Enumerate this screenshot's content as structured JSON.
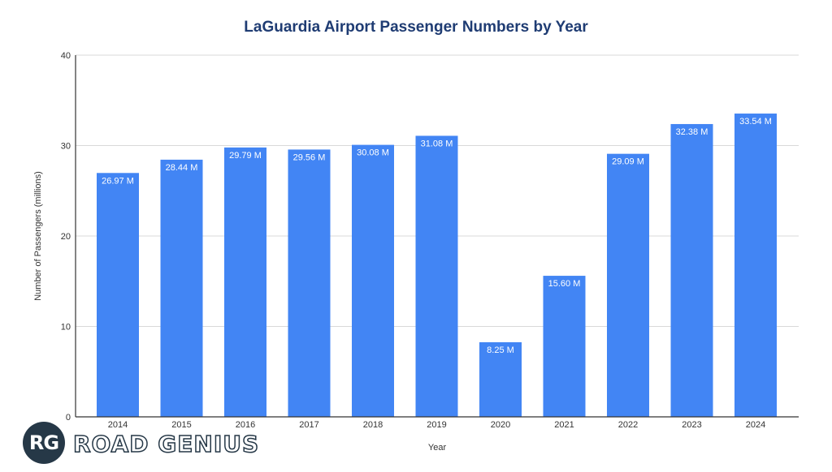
{
  "chart_data": {
    "type": "bar",
    "title": "LaGuardia Airport Passenger Numbers by Year",
    "xlabel": "Year",
    "ylabel": "Number of Passengers (millions)",
    "ylim": [
      0,
      40
    ],
    "yticks": [
      "0",
      "10",
      "20",
      "30",
      "40"
    ],
    "grid": true,
    "categories": [
      "2014",
      "2015",
      "2016",
      "2017",
      "2018",
      "2019",
      "2020",
      "2021",
      "2022",
      "2023",
      "2024"
    ],
    "values": [
      26.97,
      28.44,
      29.79,
      29.56,
      30.08,
      31.08,
      8.25,
      15.6,
      29.09,
      32.38,
      33.54
    ],
    "data_labels": [
      "26.97 M",
      "28.44 M",
      "29.79 M",
      "29.56 M",
      "30.08 M",
      "31.08 M",
      "8.25 M",
      "15.60 M",
      "29.09 M",
      "32.38 M",
      "33.54 M"
    ],
    "colors": {
      "bar": "#4285f4",
      "title": "#1f3c73",
      "grid": "#d9d9d9",
      "axis": "#333333"
    }
  },
  "logo": {
    "initials": "RG",
    "text": "ROAD GENIUS"
  }
}
